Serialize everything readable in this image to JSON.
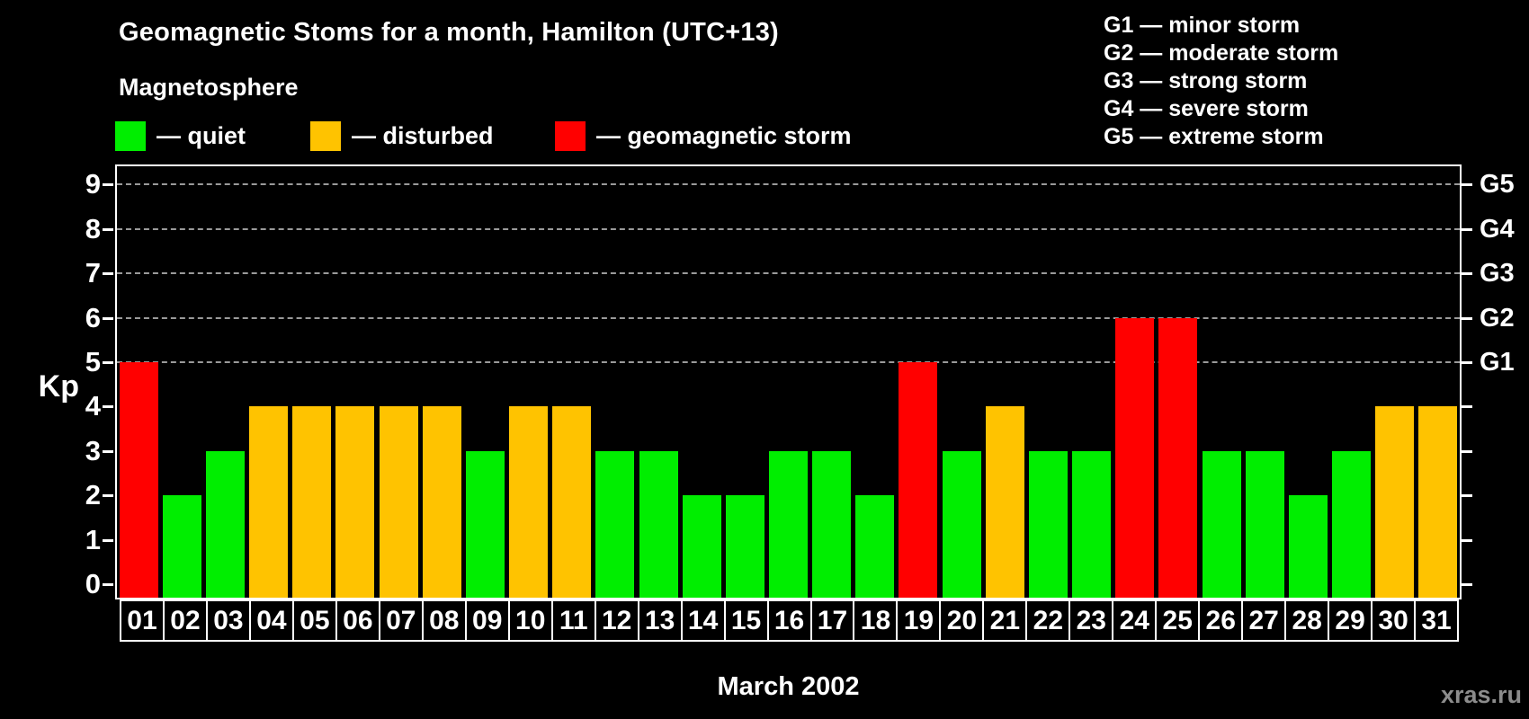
{
  "title": "Geomagnetic Stoms for a month, Hamilton (UTC+13)",
  "watermark": "xras.ru",
  "legend": {
    "title": "Magnetosphere",
    "items": [
      {
        "key": "quiet",
        "label": "— quiet",
        "color": "#00ee00"
      },
      {
        "key": "disturbed",
        "label": "— disturbed",
        "color": "#ffc300"
      },
      {
        "key": "storm",
        "label": "— geomagnetic storm",
        "color": "#ff0000"
      }
    ]
  },
  "storm_scale_legend": [
    "G1 — minor storm",
    "G2 — moderate storm",
    "G3 — strong storm",
    "G4 — severe storm",
    "G5 — extreme storm"
  ],
  "chart_data": {
    "type": "bar",
    "title": "Geomagnetic Stoms for a month, Hamilton (UTC+13)",
    "xlabel": "March 2002",
    "ylabel": "Kp",
    "ylim": [
      0,
      9
    ],
    "yticks": [
      0,
      1,
      2,
      3,
      4,
      5,
      6,
      7,
      8,
      9
    ],
    "gridlines_at": [
      5,
      6,
      7,
      8,
      9
    ],
    "grid": "horizontal dashed gray at Kp 5-9 only",
    "legend_position": "top-left",
    "right_axis": [
      {
        "kp": 5,
        "label": "G1"
      },
      {
        "kp": 6,
        "label": "G2"
      },
      {
        "kp": 7,
        "label": "G3"
      },
      {
        "kp": 8,
        "label": "G4"
      },
      {
        "kp": 9,
        "label": "G5"
      }
    ],
    "categories": [
      "01",
      "02",
      "03",
      "04",
      "05",
      "06",
      "07",
      "08",
      "09",
      "10",
      "11",
      "12",
      "13",
      "14",
      "15",
      "16",
      "17",
      "18",
      "19",
      "20",
      "21",
      "22",
      "23",
      "24",
      "25",
      "26",
      "27",
      "28",
      "29",
      "30",
      "31"
    ],
    "values": [
      5,
      2,
      3,
      4,
      4,
      4,
      4,
      4,
      3,
      4,
      4,
      3,
      3,
      2,
      2,
      3,
      3,
      2,
      5,
      3,
      4,
      3,
      3,
      6,
      6,
      3,
      3,
      2,
      3,
      4,
      4
    ],
    "bar_status": [
      "storm",
      "quiet",
      "quiet",
      "disturbed",
      "disturbed",
      "disturbed",
      "disturbed",
      "disturbed",
      "quiet",
      "disturbed",
      "disturbed",
      "quiet",
      "quiet",
      "quiet",
      "quiet",
      "quiet",
      "quiet",
      "quiet",
      "storm",
      "quiet",
      "disturbed",
      "quiet",
      "quiet",
      "storm",
      "storm",
      "quiet",
      "quiet",
      "quiet",
      "quiet",
      "disturbed",
      "disturbed"
    ],
    "status_colors": {
      "quiet": "#00ee00",
      "disturbed": "#ffc300",
      "storm": "#ff0000"
    },
    "status_rule": "Kp<=3 quiet, Kp=4 disturbed, Kp>=5 geomagnetic storm"
  }
}
